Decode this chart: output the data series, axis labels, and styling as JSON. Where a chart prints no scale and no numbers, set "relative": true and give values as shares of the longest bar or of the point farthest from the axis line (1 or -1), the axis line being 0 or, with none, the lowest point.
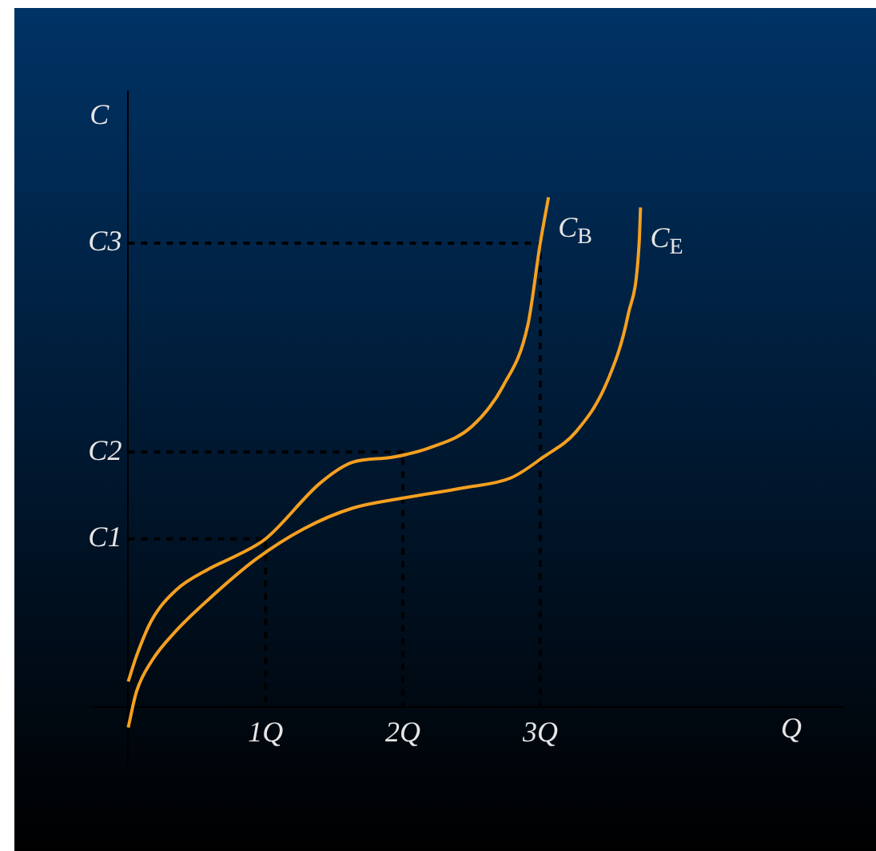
{
  "chart_data": {
    "type": "line",
    "xlabel": "Q",
    "ylabel": "C",
    "legend": false,
    "grid": false,
    "marker": "none",
    "relative": true,
    "xlim": [
      -0.27,
      5.2
    ],
    "xticks": [
      {
        "value": 1,
        "label": "1Q"
      },
      {
        "value": 2,
        "label": "2Q"
      },
      {
        "value": 3,
        "label": "3Q"
      }
    ],
    "annotations": [
      "C1",
      "C2",
      "C3"
    ],
    "series": [
      {
        "name": "C$_{B}$",
        "color": "#f5a020",
        "line_style": "solid",
        "x": [
          0,
          0.06,
          0.17,
          0.35,
          0.58,
          0.81,
          1,
          1.4,
          1.63,
          1.92,
          2.21,
          2.5,
          2.73,
          2.91,
          3,
          3.06
        ],
        "values": [
          0.05,
          0.1,
          0.17,
          0.23,
          0.27,
          0.3,
          0.33,
          0.44,
          0.48,
          0.49,
          0.51,
          0.55,
          0.63,
          0.75,
          0.91,
          1
        ]
      },
      {
        "name": "C$_{E}$",
        "color": "#f5a020",
        "line_style": "solid",
        "x": [
          0,
          0.06,
          0.17,
          0.35,
          0.58,
          0.93,
          1.28,
          1.63,
          2,
          2.44,
          2.79,
          3.02,
          3.26,
          3.49,
          3.64,
          3.72,
          3.73
        ],
        "values": [
          -0.04,
          0.03,
          0.09,
          0.15,
          0.21,
          0.29,
          0.35,
          0.39,
          0.41,
          0.43,
          0.45,
          0.49,
          0.54,
          0.64,
          0.77,
          0.91,
          0.98
        ]
      },
      {
        "color": "#000000",
        "line_style": "dashed",
        "x": [
          0,
          1,
          1
        ],
        "values": [
          0.33,
          0.33,
          0
        ]
      },
      {
        "color": "#000000",
        "line_style": "dashed",
        "x": [
          0,
          2,
          2
        ],
        "values": [
          0.5,
          0.5,
          0
        ]
      },
      {
        "color": "#000000",
        "line_style": "dashed",
        "x": [
          0,
          3,
          3
        ],
        "values": [
          0.91,
          0.91,
          0
        ]
      }
    ]
  }
}
